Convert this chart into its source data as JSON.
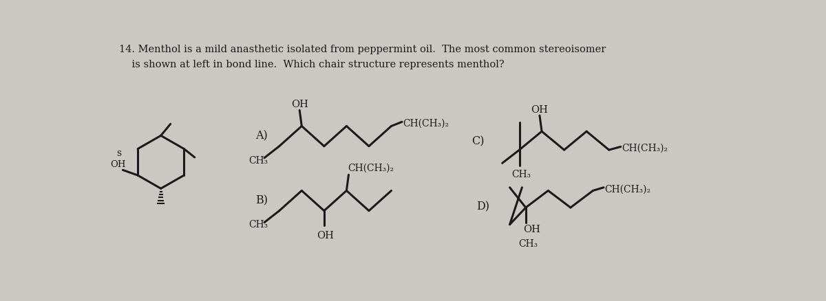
{
  "bg_color": "#cac8c2",
  "text_color": "#1a1a1a",
  "title_line1": "14. Menthol is a mild anasthetic isolated from peppermint oil.  The most common stereoisomer",
  "title_line2": "    is shown at left in bond line.  Which chair structure represents menthol?",
  "label_A": "A)",
  "label_B": "B)",
  "label_C": "C)",
  "label_D": "D)",
  "lw": 1.8,
  "lw_thick": 2.2
}
